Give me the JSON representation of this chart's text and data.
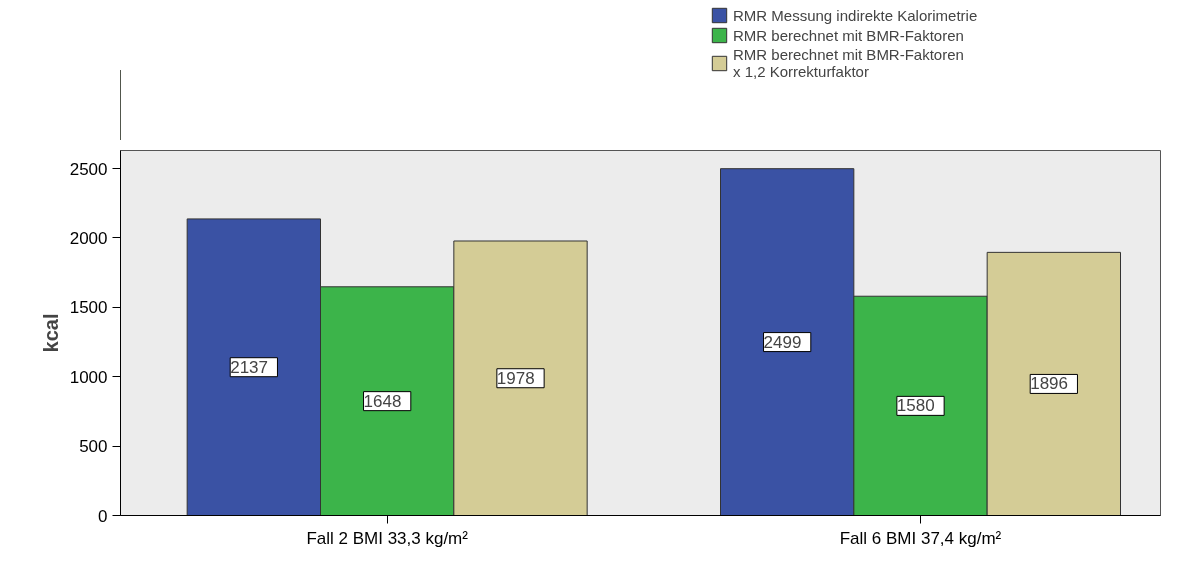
{
  "chart_data": {
    "type": "bar",
    "ylabel": "kcal",
    "categories": [
      "Fall 2 BMI 33,3 kg/m²",
      "Fall 6 BMI 37,4 kg/m²"
    ],
    "series": [
      {
        "name": "RMR Messung indirekte Kalorimetrie",
        "color": "#3a52a4",
        "values": [
          2137,
          2499
        ]
      },
      {
        "name": "RMR berechnet mit BMR-Faktoren",
        "color": "#3cb44a",
        "values": [
          1648,
          1580
        ]
      },
      {
        "name": "RMR berechnet mit BMR-Faktoren\nx 1,2 Korrekturfaktor",
        "color": "#d4cc96",
        "values": [
          1978,
          1896
        ]
      }
    ],
    "ylim": [
      0,
      2630
    ],
    "yticks": [
      0,
      500,
      1000,
      1500,
      2000,
      2500
    ],
    "grid": false,
    "legend": "top right",
    "data_labels": true
  }
}
